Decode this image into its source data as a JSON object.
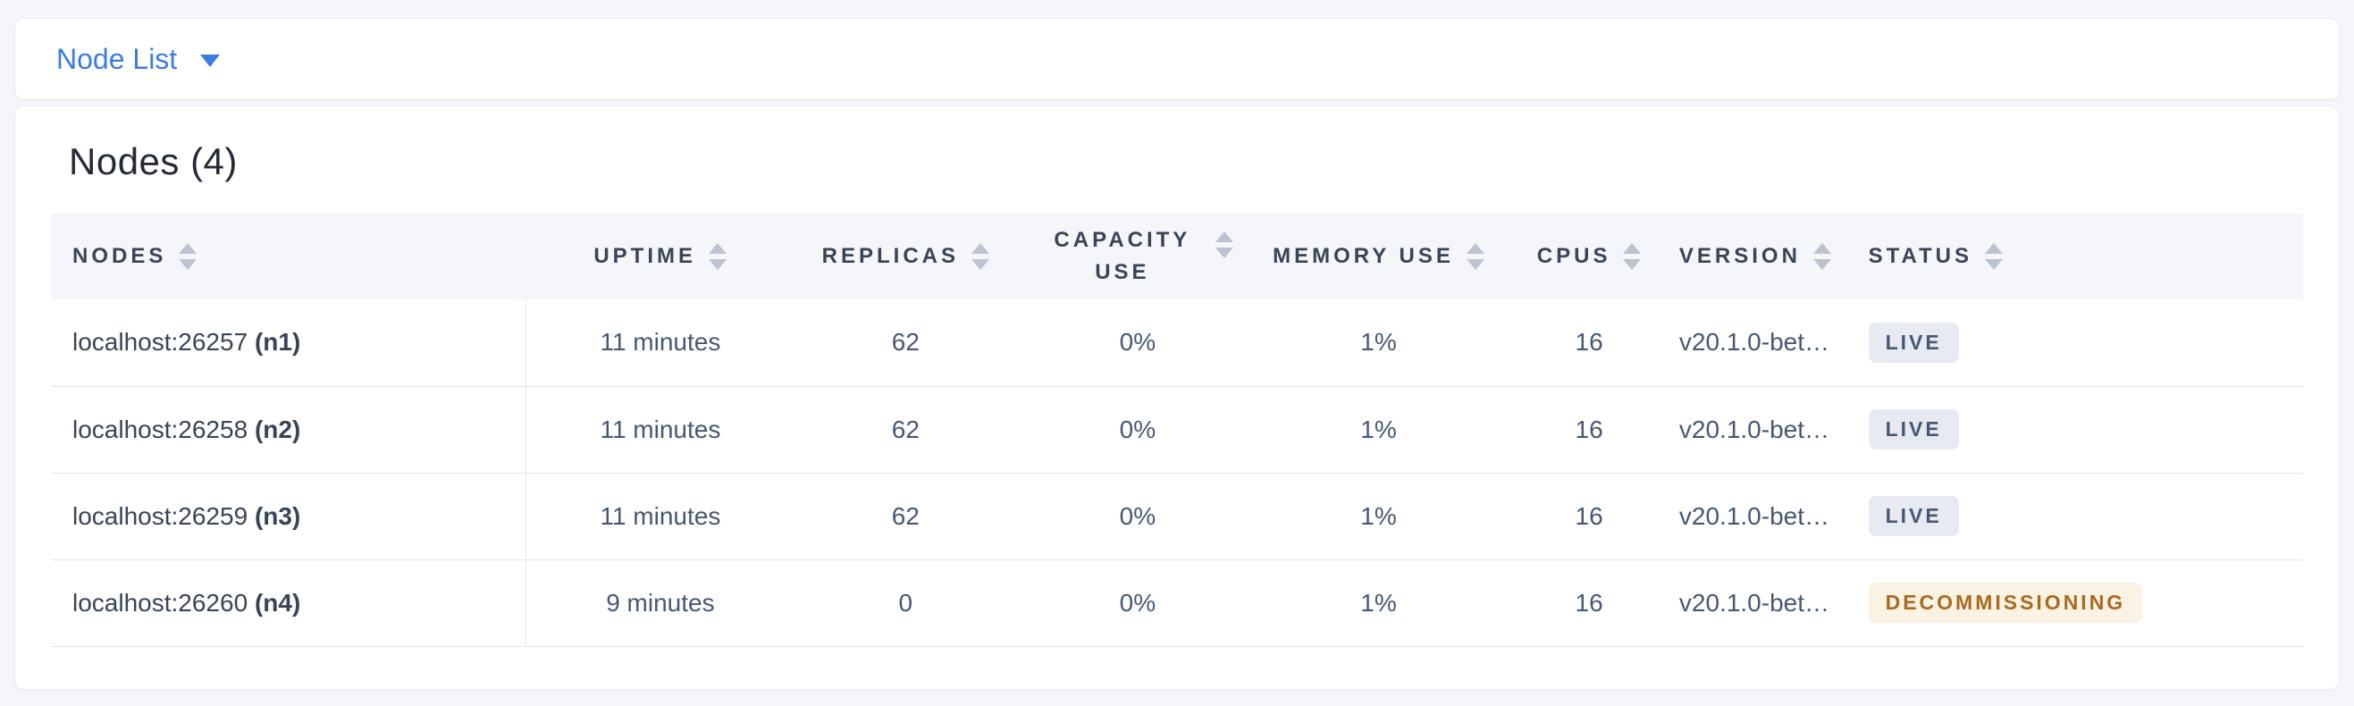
{
  "view_selector": {
    "label": "Node List"
  },
  "summary": {
    "title": "Nodes (4)"
  },
  "table": {
    "columns": [
      {
        "key": "nodes",
        "label": "Nodes"
      },
      {
        "key": "uptime",
        "label": "Uptime"
      },
      {
        "key": "replicas",
        "label": "Replicas"
      },
      {
        "key": "capacity_use",
        "label": "Capacity Use"
      },
      {
        "key": "memory_use",
        "label": "Memory Use"
      },
      {
        "key": "cpus",
        "label": "CPUs"
      },
      {
        "key": "version",
        "label": "Version"
      },
      {
        "key": "status",
        "label": "Status"
      }
    ],
    "rows": [
      {
        "address": "localhost:26257",
        "name": "(n1)",
        "uptime": "11 minutes",
        "replicas": "62",
        "capacity_use": "0%",
        "memory_use": "1%",
        "cpus": "16",
        "version": "v20.1.0-bet…",
        "status": {
          "label": "LIVE",
          "type": "live"
        }
      },
      {
        "address": "localhost:26258",
        "name": "(n2)",
        "uptime": "11 minutes",
        "replicas": "62",
        "capacity_use": "0%",
        "memory_use": "1%",
        "cpus": "16",
        "version": "v20.1.0-bet…",
        "status": {
          "label": "LIVE",
          "type": "live"
        }
      },
      {
        "address": "localhost:26259",
        "name": "(n3)",
        "uptime": "11 minutes",
        "replicas": "62",
        "capacity_use": "0%",
        "memory_use": "1%",
        "cpus": "16",
        "version": "v20.1.0-bet…",
        "status": {
          "label": "LIVE",
          "type": "live"
        }
      },
      {
        "address": "localhost:26260",
        "name": "(n4)",
        "uptime": "9 minutes",
        "replicas": "0",
        "capacity_use": "0%",
        "memory_use": "1%",
        "cpus": "16",
        "version": "v20.1.0-bet…",
        "status": {
          "label": "DECOMMISSIONING",
          "type": "decommissioning"
        }
      }
    ]
  },
  "colors": {
    "accent_blue": "#3a7de0",
    "page_background": "#f4f6fa",
    "header_row_background": "#f4f6f9",
    "live_badge_bg": "#e7eaf1",
    "live_badge_text": "#475872",
    "decommissioning_badge_bg": "#faf3e3",
    "decommissioning_badge_text": "#a9691f"
  }
}
